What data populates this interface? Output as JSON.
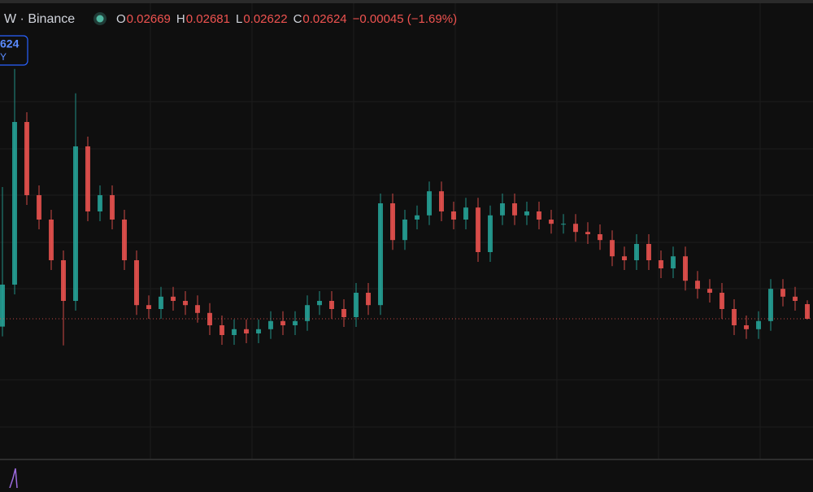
{
  "header": {
    "symbol": "W · Binance",
    "ohlc": [
      {
        "label": "O",
        "value": "0.02669"
      },
      {
        "label": "H",
        "value": "0.02681"
      },
      {
        "label": "L",
        "value": "0.02622"
      },
      {
        "label": "C",
        "value": "0.02624"
      }
    ],
    "change": "−0.00045 (−1.69%)",
    "price_tag": [
      "624",
      "Y"
    ]
  },
  "chart_data": {
    "type": "candlestick",
    "up_color": "#26a69a",
    "down_color": "#ef5350",
    "ylim": [
      0.021915,
      0.03604
    ],
    "open": [
      0.026,
      0.02729,
      0.03229,
      0.03004,
      0.02929,
      0.02804,
      0.02679,
      0.03154,
      0.02954,
      0.03004,
      0.02929,
      0.02804,
      0.02666,
      0.02654,
      0.02692,
      0.02679,
      0.02666,
      0.02642,
      0.02604,
      0.02574,
      0.02592,
      0.02579,
      0.02592,
      0.02617,
      0.02604,
      0.02617,
      0.02666,
      0.02679,
      0.02654,
      0.02629,
      0.02704,
      0.02666,
      0.02979,
      0.02866,
      0.02929,
      0.02942,
      0.03016,
      0.02954,
      0.02929,
      0.02966,
      0.02829,
      0.02942,
      0.02979,
      0.02942,
      0.02954,
      0.02929,
      0.02916,
      0.02916,
      0.02891,
      0.02884,
      0.02866,
      0.02816,
      0.02804,
      0.02854,
      0.02804,
      0.02779,
      0.02816,
      0.02741,
      0.02716,
      0.02704,
      0.02654,
      0.02604,
      0.02592,
      0.02617,
      0.02716,
      0.02692,
      0.02669
    ],
    "high": [
      0.03029,
      0.03392,
      0.03259,
      0.03034,
      0.02959,
      0.02834,
      0.03317,
      0.03184,
      0.03034,
      0.03034,
      0.02959,
      0.02834,
      0.02696,
      0.02722,
      0.02722,
      0.02709,
      0.02696,
      0.02672,
      0.02634,
      0.02622,
      0.02622,
      0.02622,
      0.02647,
      0.02647,
      0.02647,
      0.02696,
      0.02709,
      0.02709,
      0.02684,
      0.02734,
      0.02734,
      0.03009,
      0.03009,
      0.02959,
      0.02972,
      0.03046,
      0.03046,
      0.02984,
      0.02996,
      0.02996,
      0.02972,
      0.03009,
      0.03009,
      0.02984,
      0.02984,
      0.02959,
      0.02946,
      0.02946,
      0.02921,
      0.02914,
      0.02896,
      0.02846,
      0.02884,
      0.02884,
      0.02834,
      0.02846,
      0.02846,
      0.02771,
      0.02746,
      0.02734,
      0.02684,
      0.02634,
      0.02647,
      0.02746,
      0.02746,
      0.02722,
      0.02681
    ],
    "low": [
      0.0257,
      0.02699,
      0.02974,
      0.02899,
      0.02774,
      0.02542,
      0.02649,
      0.02924,
      0.02924,
      0.02899,
      0.02774,
      0.02636,
      0.02624,
      0.02624,
      0.02649,
      0.02636,
      0.02612,
      0.02574,
      0.02544,
      0.02544,
      0.02549,
      0.02549,
      0.02562,
      0.02574,
      0.02574,
      0.02587,
      0.02636,
      0.02624,
      0.02599,
      0.02599,
      0.02636,
      0.02636,
      0.02836,
      0.02836,
      0.02899,
      0.02912,
      0.02924,
      0.02899,
      0.02899,
      0.02799,
      0.02799,
      0.02912,
      0.02912,
      0.02912,
      0.02899,
      0.02886,
      0.02886,
      0.02861,
      0.02854,
      0.02836,
      0.02786,
      0.02774,
      0.02774,
      0.02774,
      0.02749,
      0.02749,
      0.02711,
      0.02686,
      0.02674,
      0.02624,
      0.02574,
      0.02562,
      0.02562,
      0.02587,
      0.02662,
      0.02649,
      0.02622
    ],
    "close": [
      0.02729,
      0.03229,
      0.03004,
      0.02929,
      0.02804,
      0.02679,
      0.03154,
      0.02954,
      0.03004,
      0.02929,
      0.02804,
      0.02666,
      0.02654,
      0.02692,
      0.02679,
      0.02666,
      0.02642,
      0.02604,
      0.02574,
      0.02592,
      0.02579,
      0.02592,
      0.02617,
      0.02604,
      0.02617,
      0.02666,
      0.02679,
      0.02654,
      0.02629,
      0.02704,
      0.02666,
      0.02979,
      0.02866,
      0.02929,
      0.02942,
      0.03016,
      0.02954,
      0.02929,
      0.02966,
      0.02829,
      0.02942,
      0.02979,
      0.02942,
      0.02954,
      0.02929,
      0.02916,
      0.02916,
      0.02891,
      0.02884,
      0.02866,
      0.02816,
      0.02804,
      0.02854,
      0.02804,
      0.02779,
      0.02816,
      0.02741,
      0.02716,
      0.02704,
      0.02654,
      0.02604,
      0.02592,
      0.02617,
      0.02716,
      0.02692,
      0.02679,
      0.02624
    ]
  }
}
